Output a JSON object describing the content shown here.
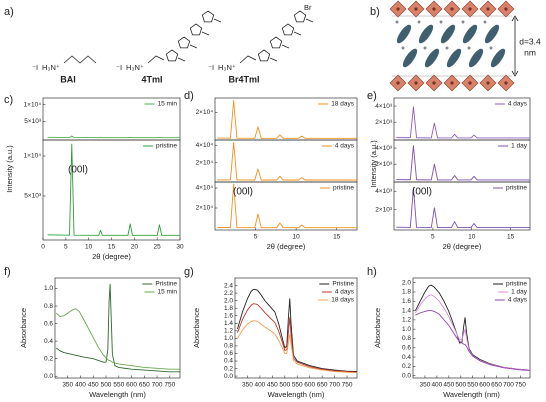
{
  "figure": {
    "panel_a": {
      "letter": "a)",
      "substituent": "Br",
      "molecules": [
        {
          "name": "BAI",
          "color": "#2e9e3a",
          "anion": "⁻I",
          "cation": "H₃N⁺"
        },
        {
          "name": "4TmI",
          "color": "#f0921e",
          "anion": "⁻I",
          "cation": "H₃N⁺"
        },
        {
          "name": "Br4TmI",
          "color": "#7b52ae",
          "anion": "⁻I",
          "cation": "H₃N⁺"
        }
      ]
    },
    "panel_b": {
      "letter": "b)",
      "spacing": "d=3.4",
      "unit": "nm"
    }
  },
  "chart_data": [
    {
      "type": "line",
      "label": "c)",
      "xlim": [
        0,
        30
      ],
      "ylim": [
        -500,
        12000
      ],
      "yticks": [
        {
          "value": 5000,
          "label": "5×10³"
        },
        {
          "value": 10000,
          "label": "1×10⁴"
        }
      ],
      "x": [
        1,
        5.8,
        6.3,
        6.8,
        12.2,
        12.6,
        13,
        18.6,
        19.1,
        19.6,
        25,
        25.5,
        26,
        30
      ],
      "legend": "upper right",
      "series": [
        {
          "name": "15 min",
          "color": "#4caf50",
          "values": [
            300,
            250,
            700,
            250,
            200,
            300,
            200,
            200,
            250,
            200,
            200,
            250,
            200,
            200
          ]
        }
      ]
    },
    {
      "type": "line",
      "xlim": [
        0,
        30
      ],
      "ylim": [
        -500,
        12000
      ],
      "ylabel": "Intensity (a.u.)",
      "xlabel": "2θ (degree)",
      "annotation": "(00l)",
      "xticks": [
        0,
        5,
        10,
        15,
        20,
        25,
        30
      ],
      "yticks": [
        {
          "value": 5000,
          "label": "5×10³"
        },
        {
          "value": 10000,
          "label": "1×10⁴"
        }
      ],
      "x": [
        1,
        5.8,
        6.3,
        6.8,
        12.2,
        12.6,
        13,
        18.6,
        19.1,
        19.6,
        25,
        25.5,
        26,
        30
      ],
      "legend": "upper right",
      "series": [
        {
          "name": "pristine",
          "color": "#2e9e3a",
          "values": [
            150,
            100,
            11500,
            100,
            80,
            700,
            80,
            80,
            1500,
            80,
            80,
            1400,
            80,
            80
          ]
        }
      ]
    },
    {
      "type": "line",
      "label": "d)",
      "xlim": [
        0,
        17.5
      ],
      "ylim": [
        -1000,
        31000
      ],
      "yticks": [
        {
          "value": 20000,
          "label": "2×10⁴"
        }
      ],
      "x": [
        0.3,
        1.9,
        2.3,
        2.7,
        4.9,
        5.3,
        5.7,
        7.6,
        8,
        8.4,
        10.3,
        10.7,
        11.1,
        17.5
      ],
      "legend": "upper right",
      "series": [
        {
          "name": "18 days",
          "color": "#f0921e",
          "values": [
            500,
            400,
            29000,
            400,
            300,
            9000,
            300,
            300,
            3000,
            300,
            300,
            2000,
            300,
            300
          ]
        }
      ]
    },
    {
      "type": "line",
      "xlim": [
        0,
        17.5
      ],
      "ylim": [
        -2000,
        46000
      ],
      "yticks": [
        {
          "value": 20000,
          "label": "2×10⁴"
        },
        {
          "value": 40000,
          "label": "4×10⁴"
        }
      ],
      "x": [
        0.3,
        1.9,
        2.3,
        2.7,
        4.9,
        5.3,
        5.7,
        7.6,
        8,
        8.4,
        10.3,
        10.7,
        11.1,
        17.5
      ],
      "legend": "upper right",
      "series": [
        {
          "name": "4 days",
          "color": "#f0921e",
          "values": [
            500,
            400,
            43000,
            400,
            300,
            13000,
            300,
            300,
            4500,
            300,
            300,
            3000,
            300,
            300
          ]
        }
      ]
    },
    {
      "type": "line",
      "xlim": [
        0,
        17.5
      ],
      "ylim": [
        -2000,
        46000
      ],
      "xlabel": "2θ (degree)",
      "annotation": "(00l)",
      "xticks": [
        5,
        10,
        15
      ],
      "yticks": [
        {
          "value": 20000,
          "label": "2×10⁴"
        },
        {
          "value": 40000,
          "label": "4×10⁴"
        }
      ],
      "x": [
        0.3,
        1.9,
        2.3,
        2.7,
        4.9,
        5.3,
        5.7,
        7.6,
        8,
        8.4,
        10.3,
        10.7,
        11.1,
        17.5
      ],
      "legend": "upper right",
      "series": [
        {
          "name": "pristine",
          "color": "#f0921e",
          "values": [
            500,
            400,
            44000,
            400,
            300,
            14000,
            300,
            300,
            5000,
            300,
            300,
            3000,
            300,
            300
          ]
        }
      ]
    },
    {
      "type": "line",
      "label": "e)",
      "xlim": [
        0,
        17.5
      ],
      "ylim": [
        -200,
        5000
      ],
      "yticks": [
        {
          "value": 2000,
          "label": "2×10³"
        },
        {
          "value": 4000,
          "label": "4×10³"
        }
      ],
      "x": [
        0.3,
        2.1,
        2.5,
        2.9,
        4.8,
        5.2,
        5.6,
        7.4,
        7.8,
        8.2,
        9.9,
        10.3,
        10.7,
        17.5
      ],
      "legend": "upper right",
      "series": [
        {
          "name": "4 days",
          "color": "#8e5cc0",
          "values": [
            100,
            80,
            3900,
            80,
            60,
            1900,
            60,
            60,
            500,
            60,
            60,
            400,
            60,
            60
          ]
        }
      ]
    },
    {
      "type": "line",
      "xlim": [
        0,
        17.5
      ],
      "ylim": [
        -200,
        5000
      ],
      "ylabel": "Intensity (a.u.)",
      "yticks": [
        {
          "value": 2000,
          "label": "2×10³"
        },
        {
          "value": 4000,
          "label": "4×10³"
        }
      ],
      "x": [
        0.3,
        2.1,
        2.5,
        2.9,
        4.8,
        5.2,
        5.6,
        7.4,
        7.8,
        8.2,
        9.9,
        10.3,
        10.7,
        17.5
      ],
      "legend": "upper right",
      "series": [
        {
          "name": "1 day",
          "color": "#7b52ae",
          "values": [
            100,
            80,
            4300,
            80,
            60,
            2000,
            60,
            60,
            600,
            60,
            60,
            500,
            60,
            60
          ]
        }
      ]
    },
    {
      "type": "line",
      "xlim": [
        0,
        17.5
      ],
      "ylim": [
        -200,
        5000
      ],
      "xlabel": "2θ (degree)",
      "annotation": "(00l)",
      "xticks": [
        5,
        10,
        15
      ],
      "yticks": [
        {
          "value": 2000,
          "label": "2×10³"
        },
        {
          "value": 4000,
          "label": "4×10³"
        }
      ],
      "x": [
        0.3,
        2.1,
        2.5,
        2.9,
        4.8,
        5.2,
        5.6,
        7.4,
        7.8,
        8.2,
        9.9,
        10.3,
        10.7,
        17.5
      ],
      "legend": "upper right",
      "series": [
        {
          "name": "pristine",
          "color": "#7b52ae",
          "values": [
            100,
            80,
            4400,
            80,
            60,
            2200,
            60,
            60,
            700,
            60,
            60,
            500,
            60,
            60
          ]
        }
      ]
    },
    {
      "type": "line",
      "label": "f)",
      "xlim": [
        300,
        790
      ],
      "ylim": [
        -0.02,
        1.12
      ],
      "xlabel": "Wavelength (nm)",
      "ylabel": "Absorbance",
      "xticks": [
        350,
        400,
        450,
        500,
        550,
        600,
        650,
        700,
        750
      ],
      "yticks": [
        {
          "value": 0,
          "label": "0.0"
        },
        0.2,
        0.4,
        0.6,
        0.8,
        {
          "value": 1,
          "label": "1.0"
        }
      ],
      "x": [
        305,
        320,
        335,
        350,
        365,
        380,
        395,
        410,
        430,
        450,
        470,
        490,
        500,
        507,
        512,
        516,
        520,
        525,
        535,
        550,
        600,
        650,
        700,
        750,
        790
      ],
      "legend": "upper right",
      "series": [
        {
          "name": "Pristine",
          "color": "#2d6a2d",
          "values": [
            0.32,
            0.29,
            0.27,
            0.26,
            0.25,
            0.24,
            0.23,
            0.22,
            0.21,
            0.2,
            0.18,
            0.16,
            0.16,
            0.3,
            0.85,
            1.05,
            0.7,
            0.25,
            0.12,
            0.1,
            0.08,
            0.07,
            0.06,
            0.05,
            0.05
          ]
        },
        {
          "name": "15 min",
          "color": "#6aa84f",
          "values": [
            0.72,
            0.68,
            0.69,
            0.72,
            0.75,
            0.77,
            0.74,
            0.66,
            0.55,
            0.44,
            0.33,
            0.24,
            0.21,
            0.19,
            0.18,
            0.18,
            0.17,
            0.16,
            0.15,
            0.14,
            0.12,
            0.1,
            0.09,
            0.08,
            0.08
          ]
        }
      ]
    },
    {
      "type": "line",
      "label": "g)",
      "xlim": [
        300,
        790
      ],
      "ylim": [
        -0.05,
        2.6
      ],
      "xlabel": "Wavelength (nm)",
      "ylabel": "Absorbance",
      "xticks": [
        350,
        400,
        450,
        500,
        550,
        600,
        650,
        700,
        750
      ],
      "yticks": [
        {
          "value": 0,
          "label": "0.0"
        },
        0.2,
        0.4,
        0.6,
        0.8,
        {
          "value": 1,
          "label": "1.0"
        },
        1.2,
        1.4,
        1.6,
        1.8,
        {
          "value": 2,
          "label": "2.0"
        },
        2.2,
        2.4
      ],
      "x": [
        310,
        330,
        350,
        365,
        375,
        390,
        405,
        420,
        440,
        460,
        475,
        490,
        500,
        508,
        515,
        520,
        525,
        535,
        550,
        600,
        650,
        700,
        750,
        790
      ],
      "legend": "upper right",
      "series": [
        {
          "name": "Pristine",
          "color": "#222222",
          "values": [
            1.25,
            1.7,
            2.05,
            2.25,
            2.3,
            2.28,
            2.15,
            2.0,
            1.85,
            1.7,
            1.4,
            1.0,
            0.75,
            0.8,
            1.6,
            2.05,
            1.4,
            0.55,
            0.4,
            0.28,
            0.2,
            0.16,
            0.13,
            0.12
          ]
        },
        {
          "name": "4 days",
          "color": "#c0392b",
          "values": [
            1.15,
            1.5,
            1.75,
            1.88,
            1.92,
            1.9,
            1.8,
            1.68,
            1.55,
            1.42,
            1.2,
            0.9,
            0.68,
            0.7,
            1.2,
            1.55,
            1.1,
            0.48,
            0.37,
            0.25,
            0.18,
            0.14,
            0.12,
            0.1
          ]
        },
        {
          "name": "18 days",
          "color": "#f0a050",
          "values": [
            1.0,
            1.22,
            1.38,
            1.45,
            1.47,
            1.45,
            1.38,
            1.3,
            1.22,
            1.12,
            0.95,
            0.75,
            0.6,
            0.6,
            0.9,
            1.1,
            0.85,
            0.42,
            0.32,
            0.22,
            0.16,
            0.12,
            0.1,
            0.09
          ]
        }
      ]
    },
    {
      "type": "line",
      "label": "h)",
      "xlim": [
        300,
        790
      ],
      "ylim": [
        -0.05,
        2.1
      ],
      "xlabel": "Wavelength (nm)",
      "ylabel": "Absorbance",
      "xticks": [
        350,
        400,
        450,
        500,
        550,
        600,
        650,
        700,
        750
      ],
      "yticks": [
        {
          "value": 0,
          "label": "0.0"
        },
        0.2,
        0.4,
        0.6,
        0.8,
        {
          "value": 1,
          "label": "1.0"
        },
        1.2,
        1.4,
        1.6,
        1.8,
        {
          "value": 2,
          "label": "2.0"
        }
      ],
      "x": [
        310,
        330,
        350,
        365,
        375,
        390,
        410,
        430,
        450,
        470,
        485,
        495,
        505,
        512,
        518,
        525,
        535,
        550,
        580,
        620,
        680,
        740,
        790
      ],
      "legend": "upper right",
      "series": [
        {
          "name": "pristine",
          "color": "#222222",
          "values": [
            1.4,
            1.6,
            1.8,
            1.92,
            1.95,
            1.9,
            1.78,
            1.6,
            1.38,
            1.1,
            0.88,
            0.7,
            0.72,
            1.05,
            1.25,
            0.9,
            0.58,
            0.45,
            0.35,
            0.26,
            0.18,
            0.14,
            0.12
          ]
        },
        {
          "name": "1 day",
          "color": "#d98ad9",
          "values": [
            1.35,
            1.52,
            1.65,
            1.72,
            1.74,
            1.7,
            1.6,
            1.45,
            1.27,
            1.05,
            0.88,
            0.78,
            0.78,
            0.9,
            1.0,
            0.8,
            0.55,
            0.43,
            0.33,
            0.25,
            0.18,
            0.14,
            0.12
          ]
        },
        {
          "name": "4 days",
          "color": "#8e44ad",
          "values": [
            1.3,
            1.35,
            1.38,
            1.4,
            1.4,
            1.38,
            1.32,
            1.2,
            1.08,
            0.92,
            0.8,
            0.74,
            0.7,
            0.68,
            0.67,
            0.62,
            0.52,
            0.42,
            0.32,
            0.24,
            0.17,
            0.13,
            0.11
          ]
        }
      ]
    }
  ]
}
